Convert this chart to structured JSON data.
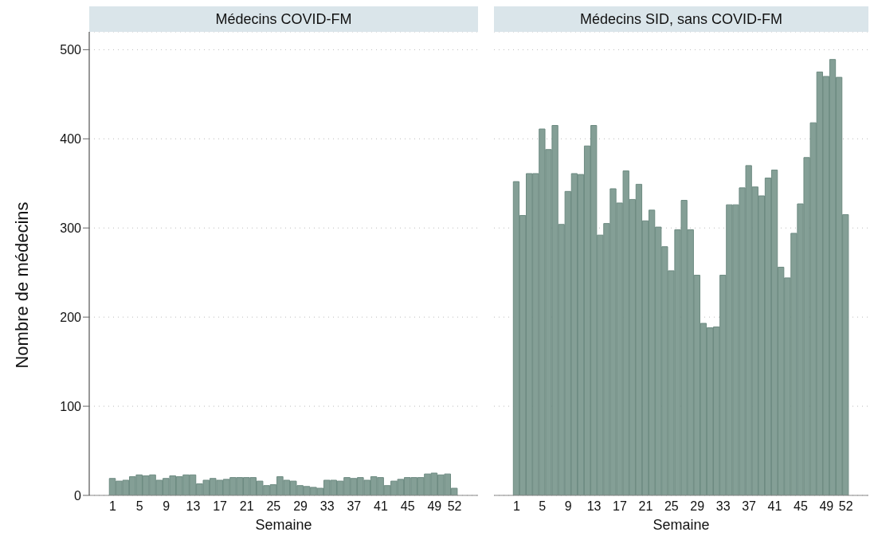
{
  "chart_data": [
    {
      "type": "bar",
      "title": "Médecins COVID-FM",
      "xlabel": "Semaine",
      "ylabel": "Nombre de médecins",
      "color": "#849f96",
      "x": [
        1,
        2,
        3,
        4,
        5,
        6,
        7,
        8,
        9,
        10,
        11,
        12,
        13,
        14,
        15,
        16,
        17,
        18,
        19,
        20,
        21,
        22,
        23,
        24,
        25,
        26,
        27,
        28,
        29,
        30,
        31,
        32,
        33,
        34,
        35,
        36,
        37,
        38,
        39,
        40,
        41,
        42,
        43,
        44,
        45,
        46,
        47,
        48,
        49,
        50,
        51,
        52
      ],
      "values": [
        19,
        16,
        17,
        21,
        23,
        22,
        23,
        17,
        19,
        22,
        21,
        23,
        23,
        13,
        17,
        19,
        17,
        18,
        20,
        20,
        20,
        20,
        16,
        11,
        12,
        21,
        17,
        16,
        11,
        10,
        9,
        8,
        17,
        17,
        16,
        20,
        19,
        20,
        17,
        21,
        20,
        11,
        16,
        18,
        20,
        20,
        20,
        24,
        25,
        23,
        24,
        8
      ],
      "xlim": [
        -2.5,
        55.5
      ],
      "xticks": [
        1,
        5,
        9,
        13,
        17,
        21,
        25,
        29,
        33,
        37,
        41,
        45,
        49,
        52
      ],
      "ylim": [
        0,
        520
      ],
      "yticks": [
        0,
        100,
        200,
        300,
        400,
        500
      ],
      "grid": "y"
    },
    {
      "type": "bar",
      "title": "Médecins SID, sans COVID-FM",
      "xlabel": "Semaine",
      "color": "#849f96",
      "x": [
        1,
        2,
        3,
        4,
        5,
        6,
        7,
        8,
        9,
        10,
        11,
        12,
        13,
        14,
        15,
        16,
        17,
        18,
        19,
        20,
        21,
        22,
        23,
        24,
        25,
        26,
        27,
        28,
        29,
        30,
        31,
        32,
        33,
        34,
        35,
        36,
        37,
        38,
        39,
        40,
        41,
        42,
        43,
        44,
        45,
        46,
        47,
        48,
        49,
        50,
        51,
        52
      ],
      "values": [
        352,
        314,
        361,
        361,
        411,
        388,
        415,
        304,
        341,
        361,
        360,
        392,
        415,
        292,
        305,
        344,
        328,
        364,
        332,
        349,
        308,
        320,
        301,
        279,
        252,
        298,
        331,
        298,
        247,
        193,
        188,
        189,
        247,
        326,
        326,
        345,
        370,
        346,
        336,
        356,
        365,
        256,
        244,
        294,
        327,
        379,
        418,
        475,
        470,
        489,
        469,
        315
      ],
      "xlim": [
        -2.5,
        55.5
      ],
      "xticks": [
        1,
        5,
        9,
        13,
        17,
        21,
        25,
        29,
        33,
        37,
        41,
        45,
        49,
        52
      ],
      "ylim": [
        0,
        520
      ],
      "yticks": [
        0,
        100,
        200,
        300,
        400,
        500
      ],
      "grid": "y",
      "tick_labels": "x"
    }
  ]
}
